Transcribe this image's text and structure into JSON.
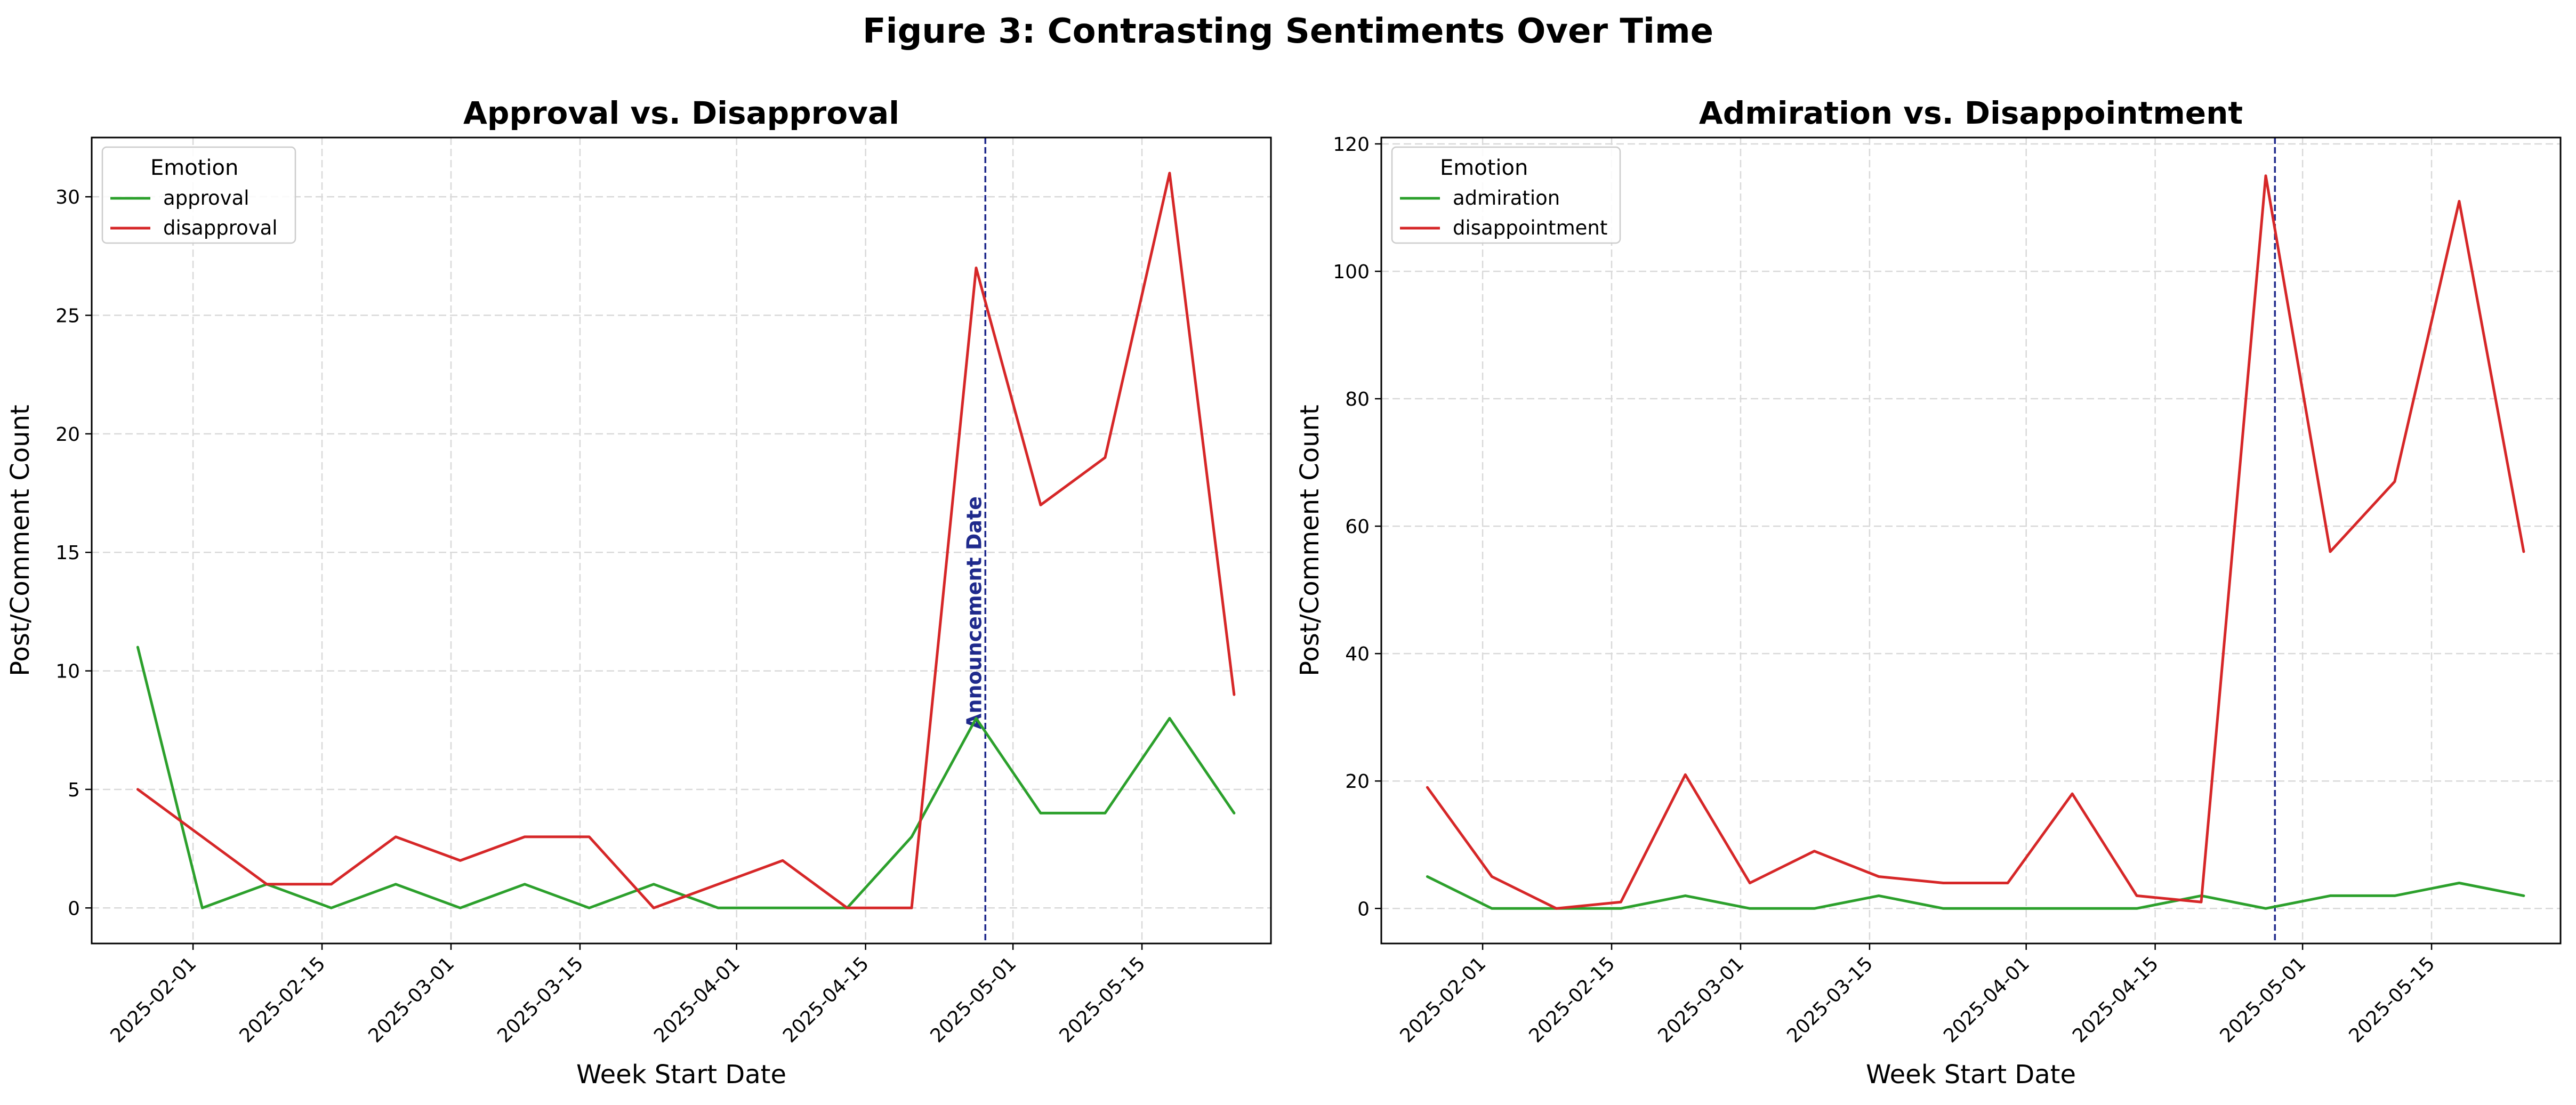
{
  "figure": {
    "suptitle": "Figure 3: Contrasting Sentiments Over Time",
    "annotation_label": "Announcement Date"
  },
  "colors": {
    "green": "#2ca02c",
    "red": "#d62728",
    "annotation": "#1f2a8c",
    "grid": "#d9d9d9"
  },
  "chart_data": [
    {
      "type": "line",
      "title": "Approval vs. Disapproval",
      "xlabel": "Week Start Date",
      "ylabel": "Post/Comment Count",
      "x": [
        "2025-01-26",
        "2025-02-02",
        "2025-02-09",
        "2025-02-16",
        "2025-02-23",
        "2025-03-02",
        "2025-03-09",
        "2025-03-16",
        "2025-03-23",
        "2025-03-30",
        "2025-04-06",
        "2025-04-13",
        "2025-04-20",
        "2025-04-27",
        "2025-05-04",
        "2025-05-11",
        "2025-05-18",
        "2025-05-25"
      ],
      "xticks": [
        "2025-02-01",
        "2025-02-15",
        "2025-03-01",
        "2025-03-15",
        "2025-04-01",
        "2025-04-15",
        "2025-05-01",
        "2025-05-15"
      ],
      "xlim": [
        "2025-01-21",
        "2025-05-29"
      ],
      "ylim": [
        -1.5,
        32.5
      ],
      "yticks": [
        0,
        5,
        10,
        15,
        20,
        25,
        30
      ],
      "grid": true,
      "legend": {
        "title": "Emotion",
        "placement": "upper-left"
      },
      "vline": {
        "date": "2025-04-28",
        "label": "Announcement Date"
      },
      "series": [
        {
          "name": "approval",
          "color": "#2ca02c",
          "values": [
            11,
            0,
            1,
            0,
            1,
            0,
            1,
            0,
            1,
            0,
            0,
            0,
            3,
            8,
            4,
            4,
            8,
            4
          ]
        },
        {
          "name": "disapproval",
          "color": "#d62728",
          "values": [
            5,
            3,
            1,
            1,
            3,
            2,
            3,
            3,
            0,
            1,
            2,
            0,
            0,
            27,
            17,
            19,
            31,
            9
          ]
        }
      ]
    },
    {
      "type": "line",
      "title": "Admiration vs. Disappointment",
      "xlabel": "Week Start Date",
      "ylabel": "Post/Comment Count",
      "x": [
        "2025-01-26",
        "2025-02-02",
        "2025-02-09",
        "2025-02-16",
        "2025-02-23",
        "2025-03-02",
        "2025-03-09",
        "2025-03-16",
        "2025-03-23",
        "2025-03-30",
        "2025-04-06",
        "2025-04-13",
        "2025-04-20",
        "2025-04-27",
        "2025-05-04",
        "2025-05-11",
        "2025-05-18",
        "2025-05-25"
      ],
      "xticks": [
        "2025-02-01",
        "2025-02-15",
        "2025-03-01",
        "2025-03-15",
        "2025-04-01",
        "2025-04-15",
        "2025-05-01",
        "2025-05-15"
      ],
      "xlim": [
        "2025-01-21",
        "2025-05-29"
      ],
      "ylim": [
        -5.5,
        121
      ],
      "yticks": [
        0,
        20,
        40,
        60,
        80,
        100,
        120
      ],
      "grid": true,
      "legend": {
        "title": "Emotion",
        "placement": "upper-left"
      },
      "vline": {
        "date": "2025-04-28",
        "label": ""
      },
      "series": [
        {
          "name": "admiration",
          "color": "#2ca02c",
          "values": [
            5,
            0,
            0,
            0,
            2,
            0,
            0,
            2,
            0,
            0,
            0,
            0,
            2,
            0,
            2,
            2,
            4,
            2
          ]
        },
        {
          "name": "disappointment",
          "color": "#d62728",
          "values": [
            19,
            5,
            0,
            1,
            21,
            4,
            9,
            5,
            4,
            4,
            18,
            2,
            1,
            115,
            56,
            67,
            111,
            56
          ]
        }
      ]
    }
  ]
}
